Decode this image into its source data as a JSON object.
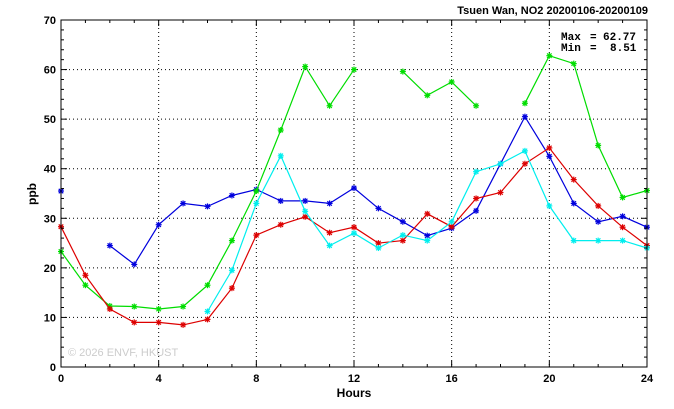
{
  "chart_data": {
    "type": "line",
    "title": "Tsuen Wan, NO2 20200106-20200109",
    "xlabel": "Hours",
    "ylabel": "ppb",
    "xlim": [
      0,
      24
    ],
    "ylim": [
      0,
      70
    ],
    "x_ticks": [
      0,
      4,
      8,
      12,
      16,
      20,
      24
    ],
    "y_ticks": [
      0,
      10,
      20,
      30,
      40,
      50,
      60,
      70
    ],
    "grid": true,
    "annotation": {
      "max_label": "Max",
      "max_value": "62.77",
      "min_label": "Min",
      "min_value": "8.51",
      "placement": "top-right"
    },
    "watermark": "© 2026 ENVF, HKUST",
    "x": [
      0,
      1,
      2,
      3,
      4,
      5,
      6,
      7,
      8,
      9,
      10,
      11,
      12,
      13,
      14,
      15,
      16,
      17,
      18,
      19,
      20,
      21,
      22,
      23,
      24
    ],
    "series": [
      {
        "color": "#0000dd",
        "values": [
          35.5,
          null,
          24.5,
          20.7,
          28.7,
          33.0,
          32.4,
          34.6,
          35.8,
          33.5,
          33.5,
          33.0,
          36.1,
          32.0,
          29.3,
          26.5,
          28.0,
          31.5,
          41.0,
          50.5,
          42.5,
          33.0,
          29.3,
          30.4,
          28.2
        ]
      },
      {
        "color": "#00dd00",
        "values": [
          23.3,
          16.5,
          12.3,
          12.2,
          11.7,
          12.2,
          16.5,
          25.5,
          35.5,
          47.8,
          60.6,
          52.7,
          60.0,
          null,
          59.6,
          54.8,
          57.5,
          52.7,
          null,
          53.2,
          62.8,
          61.2,
          44.7,
          34.2,
          35.6
        ]
      },
      {
        "color": "#dd0000",
        "values": [
          28.3,
          18.5,
          11.7,
          9.0,
          9.0,
          8.5,
          9.6,
          15.9,
          26.6,
          28.7,
          30.3,
          27.1,
          28.2,
          25.0,
          25.5,
          30.9,
          28.3,
          34.0,
          35.2,
          41.0,
          44.2,
          37.8,
          32.5,
          28.2,
          24.5
        ]
      },
      {
        "color": "#00eeee",
        "values": [
          null,
          null,
          null,
          null,
          null,
          null,
          11.2,
          19.5,
          33.0,
          42.6,
          31.4,
          24.5,
          27.0,
          24.0,
          26.6,
          25.5,
          29.3,
          39.4,
          41.0,
          43.6,
          32.5,
          25.5,
          25.5,
          25.5,
          24.0
        ]
      }
    ]
  }
}
